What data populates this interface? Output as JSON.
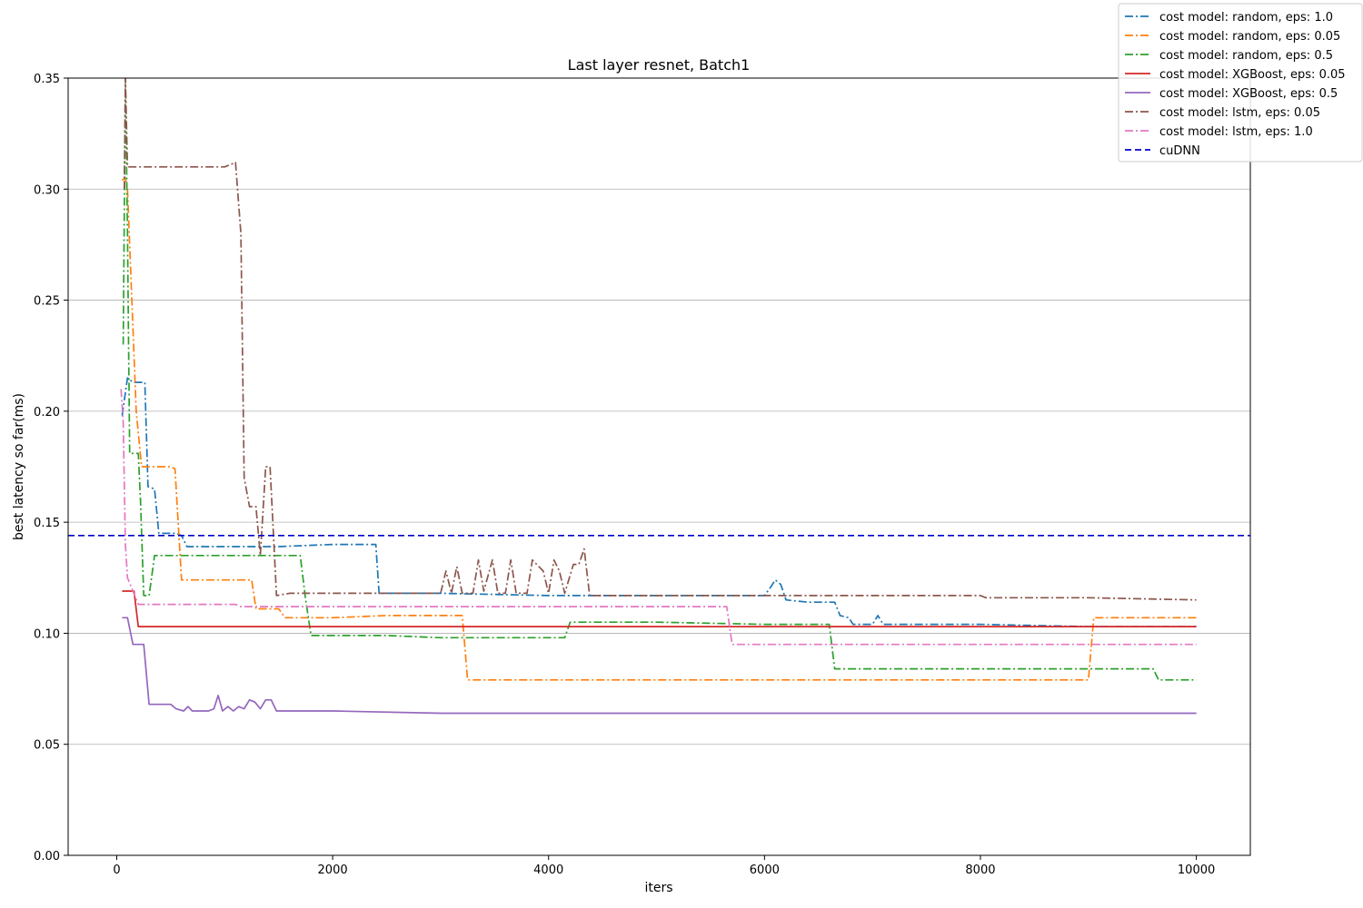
{
  "chart_data": {
    "type": "line",
    "title": "Last layer resnet, Batch1",
    "xlabel": "iters",
    "ylabel": "best latency so far(ms)",
    "xlim": [
      -450,
      10500
    ],
    "ylim": [
      0.0,
      0.35
    ],
    "xticks": [
      0,
      2000,
      4000,
      6000,
      8000,
      10000
    ],
    "xtick_labels": [
      "0",
      "2000",
      "4000",
      "6000",
      "8000",
      "10000"
    ],
    "yticks": [
      0.0,
      0.05,
      0.1,
      0.15,
      0.2,
      0.25,
      0.3,
      0.35
    ],
    "ytick_labels": [
      "0.00",
      "0.05",
      "0.10",
      "0.15",
      "0.20",
      "0.25",
      "0.30",
      "0.35"
    ],
    "grid": "horizontal",
    "legend_position": "top-right",
    "series": [
      {
        "name": "cost model: random, eps: 1.0",
        "color": "#1f77b4",
        "dash": "dashdot",
        "points": [
          [
            50,
            0.198
          ],
          [
            100,
            0.215
          ],
          [
            150,
            0.213
          ],
          [
            240,
            0.213
          ],
          [
            260,
            0.213
          ],
          [
            290,
            0.166
          ],
          [
            350,
            0.165
          ],
          [
            390,
            0.145
          ],
          [
            550,
            0.145
          ],
          [
            600,
            0.144
          ],
          [
            650,
            0.139
          ],
          [
            1000,
            0.139
          ],
          [
            1500,
            0.139
          ],
          [
            2000,
            0.14
          ],
          [
            2400,
            0.14
          ],
          [
            2430,
            0.118
          ],
          [
            3000,
            0.118
          ],
          [
            4000,
            0.117
          ],
          [
            5000,
            0.117
          ],
          [
            6000,
            0.117
          ],
          [
            6060,
            0.121
          ],
          [
            6100,
            0.124
          ],
          [
            6150,
            0.122
          ],
          [
            6200,
            0.115
          ],
          [
            6400,
            0.114
          ],
          [
            6650,
            0.114
          ],
          [
            6700,
            0.108
          ],
          [
            6780,
            0.107
          ],
          [
            6820,
            0.104
          ],
          [
            7000,
            0.104
          ],
          [
            7050,
            0.108
          ],
          [
            7100,
            0.104
          ],
          [
            8000,
            0.104
          ],
          [
            9000,
            0.103
          ],
          [
            10000,
            0.103
          ]
        ]
      },
      {
        "name": "cost model: random, eps: 0.05",
        "color": "#ff7f0e",
        "dash": "dashdot",
        "points": [
          [
            50,
            0.304
          ],
          [
            80,
            0.305
          ],
          [
            100,
            0.3
          ],
          [
            180,
            0.2
          ],
          [
            230,
            0.175
          ],
          [
            500,
            0.175
          ],
          [
            540,
            0.174
          ],
          [
            600,
            0.124
          ],
          [
            1000,
            0.124
          ],
          [
            1250,
            0.124
          ],
          [
            1290,
            0.111
          ],
          [
            1500,
            0.111
          ],
          [
            1560,
            0.107
          ],
          [
            2000,
            0.107
          ],
          [
            2500,
            0.108
          ],
          [
            3000,
            0.108
          ],
          [
            3200,
            0.108
          ],
          [
            3250,
            0.079
          ],
          [
            4000,
            0.079
          ],
          [
            5000,
            0.079
          ],
          [
            6000,
            0.079
          ],
          [
            7000,
            0.079
          ],
          [
            8000,
            0.079
          ],
          [
            9000,
            0.079
          ],
          [
            9050,
            0.107
          ],
          [
            10000,
            0.107
          ]
        ]
      },
      {
        "name": "cost model: random, eps: 0.5",
        "color": "#2ca02c",
        "dash": "dashdot",
        "points": [
          [
            60,
            0.23
          ],
          [
            80,
            0.35
          ],
          [
            100,
            0.28
          ],
          [
            120,
            0.181
          ],
          [
            200,
            0.181
          ],
          [
            220,
            0.16
          ],
          [
            250,
            0.117
          ],
          [
            300,
            0.117
          ],
          [
            350,
            0.135
          ],
          [
            500,
            0.135
          ],
          [
            1000,
            0.135
          ],
          [
            1500,
            0.135
          ],
          [
            1700,
            0.135
          ],
          [
            1750,
            0.115
          ],
          [
            1800,
            0.099
          ],
          [
            2000,
            0.099
          ],
          [
            2500,
            0.099
          ],
          [
            3000,
            0.098
          ],
          [
            3500,
            0.098
          ],
          [
            4150,
            0.098
          ],
          [
            4200,
            0.105
          ],
          [
            5000,
            0.105
          ],
          [
            6000,
            0.104
          ],
          [
            6600,
            0.104
          ],
          [
            6650,
            0.084
          ],
          [
            7000,
            0.084
          ],
          [
            8000,
            0.084
          ],
          [
            9000,
            0.084
          ],
          [
            9600,
            0.084
          ],
          [
            9650,
            0.079
          ],
          [
            10000,
            0.079
          ]
        ]
      },
      {
        "name": "cost model: XGBoost, eps: 0.05",
        "color": "#d62728",
        "dash": "solid",
        "points": [
          [
            50,
            0.119
          ],
          [
            160,
            0.119
          ],
          [
            200,
            0.103
          ],
          [
            1000,
            0.103
          ],
          [
            4000,
            0.103
          ],
          [
            7000,
            0.103
          ],
          [
            10000,
            0.103
          ]
        ]
      },
      {
        "name": "cost model: XGBoost, eps: 0.5",
        "color": "#9467bd",
        "dash": "solid",
        "points": [
          [
            50,
            0.107
          ],
          [
            100,
            0.107
          ],
          [
            150,
            0.095
          ],
          [
            250,
            0.095
          ],
          [
            300,
            0.068
          ],
          [
            500,
            0.068
          ],
          [
            550,
            0.066
          ],
          [
            620,
            0.065
          ],
          [
            660,
            0.067
          ],
          [
            700,
            0.065
          ],
          [
            850,
            0.065
          ],
          [
            900,
            0.066
          ],
          [
            940,
            0.072
          ],
          [
            980,
            0.065
          ],
          [
            1030,
            0.067
          ],
          [
            1080,
            0.065
          ],
          [
            1130,
            0.067
          ],
          [
            1180,
            0.066
          ],
          [
            1230,
            0.07
          ],
          [
            1280,
            0.069
          ],
          [
            1330,
            0.066
          ],
          [
            1380,
            0.07
          ],
          [
            1430,
            0.07
          ],
          [
            1480,
            0.065
          ],
          [
            2000,
            0.065
          ],
          [
            3000,
            0.064
          ],
          [
            5000,
            0.064
          ],
          [
            7000,
            0.064
          ],
          [
            10000,
            0.064
          ]
        ]
      },
      {
        "name": "cost model: lstm, eps: 0.05",
        "color": "#8c564b",
        "dash": "dashdot",
        "points": [
          [
            70,
            0.3
          ],
          [
            80,
            0.35
          ],
          [
            100,
            0.31
          ],
          [
            1000,
            0.31
          ],
          [
            1100,
            0.312
          ],
          [
            1150,
            0.28
          ],
          [
            1180,
            0.17
          ],
          [
            1230,
            0.157
          ],
          [
            1290,
            0.157
          ],
          [
            1330,
            0.135
          ],
          [
            1380,
            0.175
          ],
          [
            1420,
            0.175
          ],
          [
            1480,
            0.117
          ],
          [
            1600,
            0.118
          ],
          [
            2000,
            0.118
          ],
          [
            3000,
            0.118
          ],
          [
            3050,
            0.128
          ],
          [
            3100,
            0.118
          ],
          [
            3150,
            0.13
          ],
          [
            3200,
            0.118
          ],
          [
            3300,
            0.118
          ],
          [
            3350,
            0.133
          ],
          [
            3400,
            0.119
          ],
          [
            3480,
            0.133
          ],
          [
            3530,
            0.118
          ],
          [
            3600,
            0.118
          ],
          [
            3650,
            0.133
          ],
          [
            3700,
            0.118
          ],
          [
            3800,
            0.118
          ],
          [
            3850,
            0.133
          ],
          [
            3950,
            0.128
          ],
          [
            4000,
            0.118
          ],
          [
            4050,
            0.133
          ],
          [
            4100,
            0.128
          ],
          [
            4150,
            0.118
          ],
          [
            4230,
            0.131
          ],
          [
            4280,
            0.131
          ],
          [
            4330,
            0.138
          ],
          [
            4380,
            0.117
          ],
          [
            5000,
            0.117
          ],
          [
            6000,
            0.117
          ],
          [
            7000,
            0.117
          ],
          [
            8000,
            0.117
          ],
          [
            8050,
            0.116
          ],
          [
            9000,
            0.116
          ],
          [
            10000,
            0.115
          ]
        ]
      },
      {
        "name": "cost model: lstm, eps: 1.0",
        "color": "#e377c2",
        "dash": "dashdot",
        "points": [
          [
            40,
            0.21
          ],
          [
            60,
            0.195
          ],
          [
            80,
            0.14
          ],
          [
            100,
            0.125
          ],
          [
            150,
            0.119
          ],
          [
            200,
            0.113
          ],
          [
            500,
            0.113
          ],
          [
            1100,
            0.113
          ],
          [
            1150,
            0.112
          ],
          [
            2000,
            0.112
          ],
          [
            3000,
            0.112
          ],
          [
            4000,
            0.112
          ],
          [
            5000,
            0.112
          ],
          [
            5650,
            0.112
          ],
          [
            5700,
            0.095
          ],
          [
            6000,
            0.095
          ],
          [
            7000,
            0.095
          ],
          [
            8000,
            0.095
          ],
          [
            9000,
            0.095
          ],
          [
            10000,
            0.095
          ]
        ]
      },
      {
        "name": "cuDNN",
        "color": "#0000cc",
        "dash": "dashed",
        "hline": 0.144
      }
    ]
  }
}
